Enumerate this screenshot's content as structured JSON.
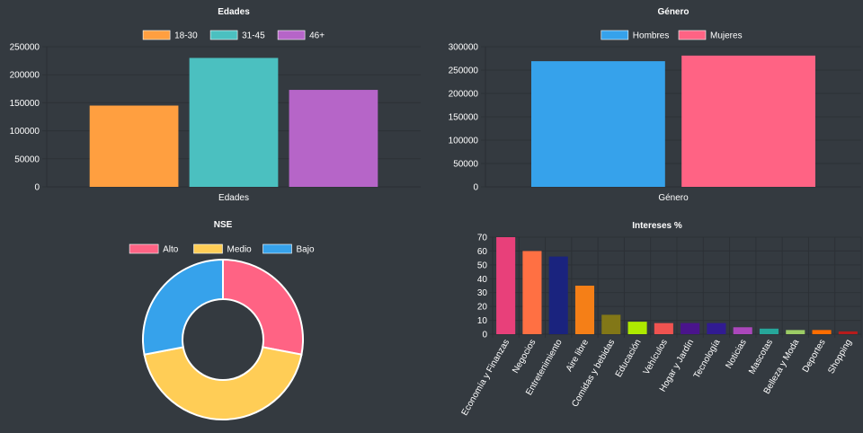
{
  "charts": {
    "edades": {
      "type": "bar",
      "title": "Edades",
      "xlabel": "Edades",
      "ylim": [
        0,
        250000
      ],
      "yticks": [
        0,
        50000,
        100000,
        150000,
        200000,
        250000
      ],
      "series": [
        {
          "name": "18-30",
          "value": 145000,
          "color": "#ff9f40"
        },
        {
          "name": "31-45",
          "value": 230000,
          "color": "#4bc0c0"
        },
        {
          "name": "46+",
          "value": 173000,
          "color": "#b665c8"
        }
      ]
    },
    "genero": {
      "type": "bar",
      "title": "Género",
      "xlabel": "Género",
      "ylim": [
        0,
        300000
      ],
      "yticks": [
        0,
        50000,
        100000,
        150000,
        200000,
        250000,
        300000
      ],
      "series": [
        {
          "name": "Hombres",
          "value": 269000,
          "color": "#36a2eb"
        },
        {
          "name": "Mujeres",
          "value": 281000,
          "color": "#ff6384"
        }
      ]
    },
    "nse": {
      "type": "pie",
      "title": "NSE",
      "series": [
        {
          "name": "Alto",
          "value": 28,
          "color": "#ff6384"
        },
        {
          "name": "Medio",
          "value": 44,
          "color": "#ffcd56"
        },
        {
          "name": "Bajo",
          "value": 28,
          "color": "#36a2eb"
        }
      ]
    },
    "intereses": {
      "type": "bar",
      "title": "Intereses %",
      "ylim": [
        0,
        70
      ],
      "yticks": [
        0,
        10,
        20,
        30,
        40,
        50,
        60,
        70
      ],
      "categories": [
        "Economía y Finanzas",
        "Negocios",
        "Entretenimiento",
        "Aire libre",
        "Comidas y bebidas",
        "Educación",
        "Vehículos",
        "Hogar y Jardín",
        "Tecnología",
        "Noticias",
        "Mascotas",
        "Belleza y Moda",
        "Deportes",
        "Shopping"
      ],
      "values": [
        70,
        60,
        56,
        35,
        14,
        9,
        8,
        8,
        8,
        5,
        4,
        3,
        3,
        2
      ],
      "colors": [
        "#e8407a",
        "#ff7043",
        "#1a237e",
        "#f57f17",
        "#827717",
        "#aeea00",
        "#ef5350",
        "#4a148c",
        "#311b92",
        "#ab47bc",
        "#26a69a",
        "#9ccc65",
        "#ff6d00",
        "#b71c1c"
      ]
    }
  }
}
